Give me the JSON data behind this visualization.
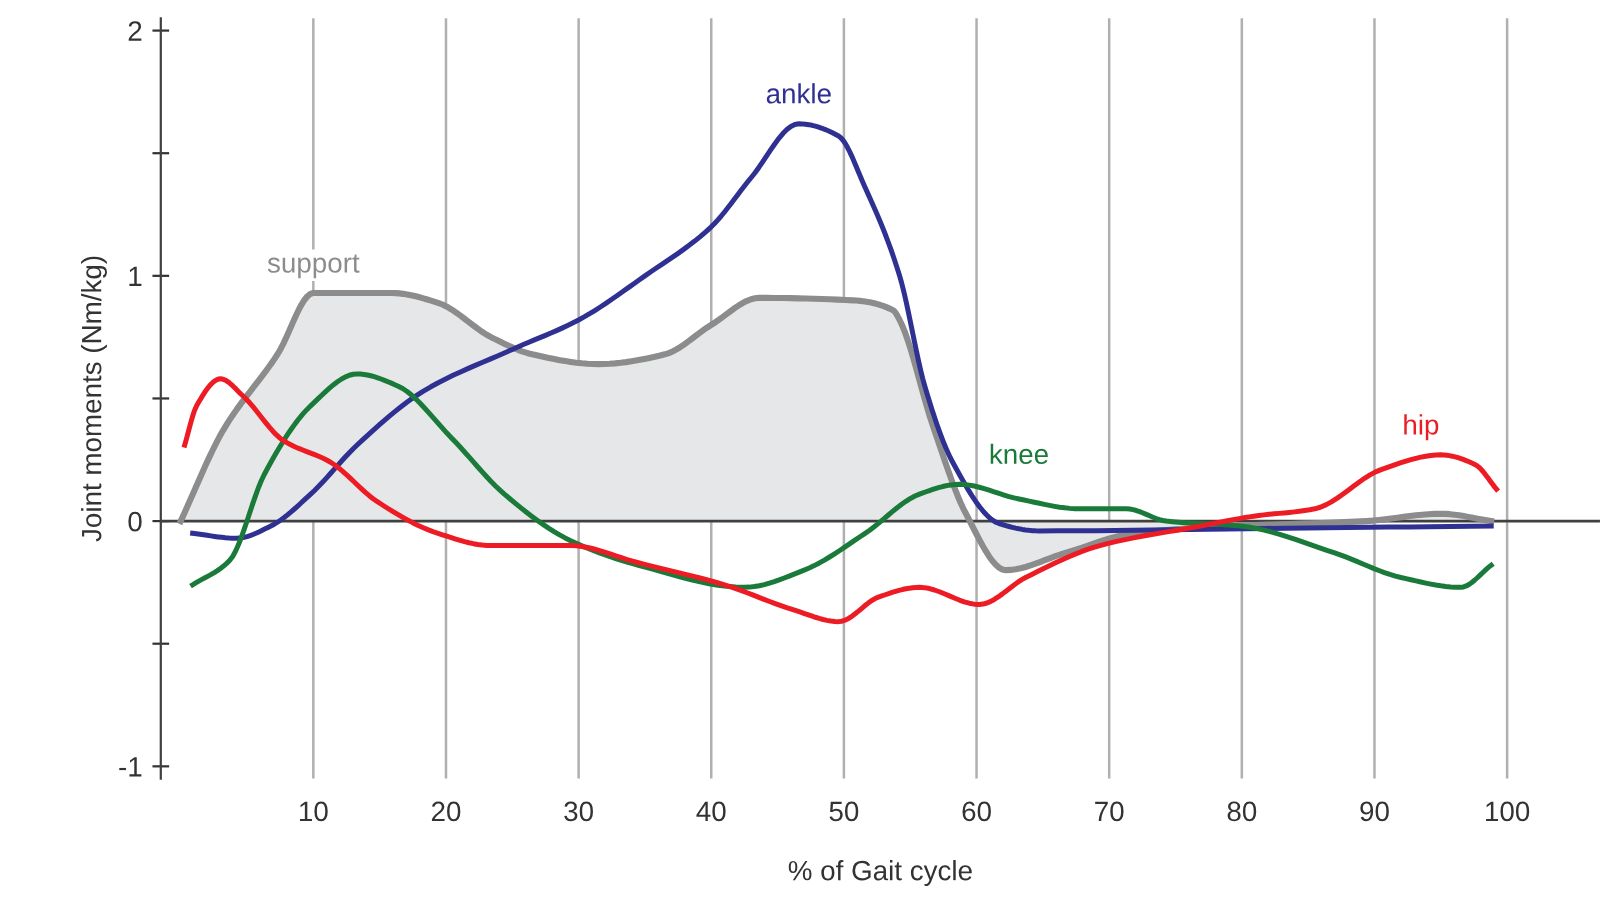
{
  "chart_data": {
    "type": "line",
    "xlabel": "% of Gait cycle",
    "ylabel": "Joint moments (Nm/kg)",
    "xlim": [
      -1.5,
      107
    ],
    "ylim": [
      -1.05,
      2.05
    ],
    "xticks": [
      10,
      20,
      30,
      40,
      50,
      60,
      70,
      80,
      90,
      100
    ],
    "yticks": [
      -1,
      {
        "value": -0.5,
        "label": null
      },
      0,
      {
        "value": 0.5,
        "label": null
      },
      1,
      {
        "value": 1.5,
        "label": null
      },
      2
    ],
    "grid": "x",
    "legend": false,
    "marker": "none",
    "line_style": "solid",
    "ref_lines": [
      {
        "axis": "y",
        "value": 0,
        "color": "#404040"
      }
    ],
    "series": [
      {
        "name": "support",
        "type": "area",
        "color": "#8c8c8c",
        "x": [
          0,
          3.2,
          7.3,
          10,
          15.9,
          19.4,
          23.4,
          26.5,
          31.5,
          36.5,
          40,
          43.6,
          50.7,
          53.7,
          54.2,
          56.7,
          59.2,
          62.2,
          66.7,
          71.8,
          79.4,
          89.4,
          95,
          98.8
        ],
        "values": [
          0,
          0.37,
          0.68,
          0.93,
          0.93,
          0.89,
          0.75,
          0.68,
          0.64,
          0.68,
          0.8,
          0.91,
          0.9,
          0.86,
          0.82,
          0.39,
          0.03,
          -0.2,
          -0.13,
          -0.05,
          -0.02,
          0,
          0.03,
          0
        ]
      },
      {
        "name": "ankle",
        "color": "#2e3192",
        "x": [
          0.9,
          4.2,
          6.8,
          9.8,
          13.3,
          18.3,
          25,
          30,
          35,
          40,
          43,
          46.6,
          49.6,
          51.6,
          54.2,
          56.1,
          58.2,
          61.7,
          64.7,
          81.8,
          98.8
        ],
        "values": [
          -0.05,
          -0.07,
          -0.02,
          0.11,
          0.31,
          0.53,
          0.7,
          0.82,
          1.0,
          1.2,
          1.4,
          1.62,
          1.57,
          1.36,
          1.0,
          0.55,
          0.24,
          -0.01,
          -0.04,
          -0.03,
          -0.02
        ]
      },
      {
        "name": "knee",
        "color": "#1a7a3a",
        "x": [
          0.9,
          3.7,
          6.3,
          9.8,
          13.3,
          16.4,
          20.4,
          24.4,
          29.4,
          34.5,
          42.5,
          47,
          51.6,
          55.7,
          58.7,
          63.2,
          67.8,
          71.3,
          74.3,
          79.9,
          87,
          92,
          96.5,
          98.8
        ],
        "values": [
          -0.26,
          -0.16,
          0.19,
          0.47,
          0.6,
          0.55,
          0.34,
          0.11,
          -0.08,
          -0.18,
          -0.27,
          -0.2,
          -0.05,
          0.11,
          0.15,
          0.09,
          0.05,
          0.05,
          0,
          -0.02,
          -0.13,
          -0.23,
          -0.27,
          -0.18
        ]
      },
      {
        "name": "hip",
        "color": "#ed1c24",
        "x": [
          0.3,
          1.2,
          3,
          4.7,
          7.7,
          11.3,
          14.8,
          19.4,
          23.4,
          29.4,
          34.5,
          41,
          46.1,
          49.6,
          52.6,
          55.7,
          60.2,
          63.7,
          69.3,
          76.9,
          80.9,
          85.5,
          90.5,
          95,
          97.6,
          99.2
        ],
        "values": [
          0.31,
          0.47,
          0.58,
          0.51,
          0.33,
          0.24,
          0.08,
          -0.05,
          -0.1,
          -0.1,
          -0.17,
          -0.26,
          -0.36,
          -0.41,
          -0.31,
          -0.27,
          -0.34,
          -0.23,
          -0.1,
          -0.02,
          0.02,
          0.05,
          0.21,
          0.27,
          0.23,
          0.13
        ]
      }
    ]
  }
}
